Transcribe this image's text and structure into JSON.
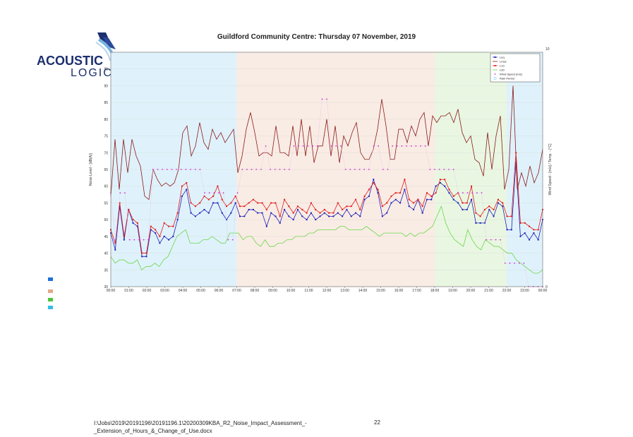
{
  "logo": {
    "line1": "ACOUSTIC",
    "line2": "LOGIC"
  },
  "chart_title": "Guildford Community Centre: Thursday 07 November, 2019",
  "footer": {
    "path_line1": "I:\\Jobs\\2019\\20191196\\20191196.1\\20200309KBA_R2_Noise_Impact_Assessment_-",
    "path_line2": "_Extension_of_Hours_&_Change_of_Use.docx",
    "page_number": "22"
  },
  "side_markers": [
    {
      "color": "#1e6fd9"
    },
    {
      "color": "#e3a88a"
    },
    {
      "color": "#4cc43a"
    },
    {
      "color": "#33bde8"
    }
  ],
  "chart_data": {
    "type": "line",
    "title": "Guildford Community Centre: Thursday 07 November, 2019",
    "ylabel": "Noise Level - [dB(A)]",
    "y2label": "Wind Speed - [m/s] / Temp. - [°C]",
    "ylim": [
      30,
      100
    ],
    "y2lim": [
      0,
      10
    ],
    "xlim": [
      0,
      24
    ],
    "x_ticks": [
      "00:00",
      "01:00",
      "02:00",
      "03:00",
      "04:00",
      "05:00",
      "06:00",
      "07:00",
      "08:00",
      "09:00",
      "10:00",
      "11:00",
      "12:00",
      "13:00",
      "14:00",
      "15:00",
      "16:00",
      "17:00",
      "18:00",
      "19:00",
      "20:00",
      "21:00",
      "22:00",
      "23:00",
      "00:00"
    ],
    "y_ticks": [
      30,
      35,
      40,
      45,
      50,
      55,
      60,
      65,
      70,
      75,
      80,
      85,
      90,
      95
    ],
    "y2_ticks": [
      "0",
      "10"
    ],
    "legend_position": "top-right",
    "periods": [
      {
        "start": 0,
        "end": 7,
        "color": "#dff2fb"
      },
      {
        "start": 7,
        "end": 18,
        "color": "#f9ece4"
      },
      {
        "start": 18,
        "end": 22,
        "color": "#e9f7e2"
      },
      {
        "start": 22,
        "end": 24,
        "color": "#dff2fb"
      }
    ],
    "series": [
      {
        "name": "Leq",
        "color": "#1f1fb8",
        "marker": "square",
        "values": [
          46,
          41,
          54,
          44,
          53,
          49,
          48,
          39,
          39,
          47,
          46,
          43,
          45,
          44,
          45,
          50,
          57,
          59,
          52,
          51,
          52,
          53,
          52,
          55,
          55,
          52,
          50,
          52,
          55,
          51,
          51,
          53,
          53,
          52,
          52,
          48,
          52,
          51,
          49,
          53,
          51,
          50,
          53,
          51,
          50,
          52,
          50,
          51,
          52,
          51,
          51,
          52,
          51,
          53,
          51,
          52,
          51,
          56,
          57,
          62,
          58,
          51,
          52,
          55,
          56,
          55,
          59,
          54,
          53,
          56,
          52,
          56,
          56,
          60,
          61,
          60,
          58,
          56,
          55,
          53,
          53,
          56,
          49,
          49,
          49,
          53,
          51,
          55,
          54,
          47,
          47,
          67,
          45,
          46,
          44,
          46,
          44,
          50
        ]
      },
      {
        "name": "Lmax",
        "color": "#8b1a1a",
        "marker": "none",
        "values": [
          57,
          74,
          59,
          74,
          64,
          74,
          69,
          66,
          57,
          56,
          65,
          62,
          60,
          61,
          60,
          61,
          65,
          76,
          78,
          69,
          72,
          79,
          73,
          71,
          77,
          74,
          76,
          73,
          75,
          77,
          64,
          69,
          77,
          82,
          76,
          69,
          70,
          70,
          69,
          78,
          70,
          70,
          69,
          78,
          69,
          80,
          69,
          78,
          67,
          72,
          72,
          80,
          69,
          78,
          67,
          75,
          72,
          76,
          79,
          70,
          68,
          68,
          71,
          77,
          86,
          78,
          68,
          68,
          77,
          77,
          73,
          78,
          75,
          80,
          82,
          72,
          81,
          79,
          81,
          81,
          82,
          79,
          83,
          76,
          73,
          75,
          68,
          67,
          63,
          76,
          65,
          75,
          81,
          59,
          65,
          90,
          59,
          64,
          60,
          66,
          61,
          64,
          71
        ]
      },
      {
        "name": "L10",
        "color": "#e31a1a",
        "marker": "square",
        "values": [
          47,
          43,
          55,
          45,
          53,
          50,
          49,
          40,
          40,
          48,
          47,
          45,
          49,
          48,
          48,
          52,
          60,
          61,
          55,
          54,
          55,
          57,
          56,
          57,
          60,
          56,
          54,
          55,
          57,
          54,
          54,
          55,
          56,
          55,
          55,
          53,
          55,
          55,
          51,
          56,
          54,
          52,
          54,
          53,
          52,
          55,
          53,
          52,
          53,
          52,
          52,
          55,
          53,
          54,
          54,
          56,
          53,
          57,
          59,
          61,
          59,
          54,
          55,
          57,
          58,
          58,
          62,
          56,
          55,
          56,
          54,
          58,
          57,
          58,
          62,
          62,
          59,
          57,
          58,
          55,
          55,
          60,
          52,
          51,
          53,
          54,
          53,
          56,
          55,
          51,
          51,
          70,
          49,
          49,
          48,
          47,
          47,
          53
        ]
      },
      {
        "name": "L90",
        "color": "#6bd64a",
        "marker": "none",
        "values": [
          39,
          37,
          38,
          38,
          37,
          37,
          38,
          35,
          36,
          36,
          37,
          36,
          38,
          39,
          42,
          45,
          46,
          47,
          43,
          43,
          43,
          44,
          44,
          45,
          44,
          43,
          43,
          46,
          46,
          46,
          44,
          45,
          45,
          43,
          42,
          44,
          42,
          42,
          43,
          43,
          44,
          44,
          45,
          45,
          45,
          46,
          46,
          47,
          47,
          47,
          47,
          47,
          48,
          48,
          47,
          47,
          47,
          47,
          48,
          47,
          46,
          45,
          46,
          46,
          46,
          46,
          46,
          45,
          46,
          45,
          46,
          46,
          47,
          48,
          51,
          54,
          49,
          46,
          44,
          43,
          42,
          47,
          44,
          42,
          41,
          44,
          43,
          42,
          42,
          41,
          40,
          40,
          38,
          37,
          36,
          35,
          34,
          34,
          35
        ]
      },
      {
        "name": "Wind Speed (m/s)",
        "color": "#cc33cc",
        "marker": "dot",
        "values": [
          4,
          2,
          4,
          4,
          2,
          2,
          2,
          2,
          2,
          5,
          5,
          5,
          5,
          5,
          5,
          5,
          5,
          5,
          5,
          5,
          4,
          4,
          4,
          4,
          4,
          2,
          2,
          4,
          5,
          5,
          5,
          5,
          5,
          6,
          5,
          5,
          5,
          5,
          5,
          6,
          6,
          6,
          6,
          6,
          6,
          8,
          8,
          6,
          6,
          6,
          5,
          5,
          5,
          5,
          5,
          5,
          6,
          6,
          5,
          5,
          6,
          6,
          6,
          6,
          6,
          6,
          6,
          6,
          5,
          5,
          5,
          5,
          5,
          5,
          4,
          4,
          4,
          4,
          4,
          4,
          2,
          2,
          2,
          2,
          1,
          1,
          1,
          1,
          1,
          0,
          0,
          0,
          0
        ]
      },
      {
        "name": "Rain Period",
        "color": "#66ccff",
        "marker": "square-open",
        "values": []
      }
    ]
  }
}
